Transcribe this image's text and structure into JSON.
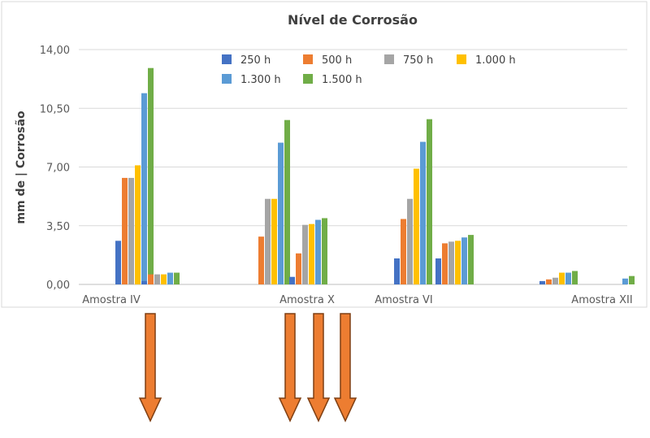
{
  "chart_data": {
    "type": "bar",
    "title": "Nível de Corrosão",
    "ylabel": "mm de | Corrosão",
    "xlabel": "",
    "ylim": [
      0,
      14
    ],
    "yticks": [
      "0,00",
      "3,50",
      "7,00",
      "10,50",
      "14,00"
    ],
    "ytick_values": [
      0,
      3.5,
      7,
      10.5,
      14
    ],
    "grid": true,
    "legend_position": "top",
    "category_labels": [
      "Amostra IV",
      "Amostra X",
      "Amostra VI",
      "Amostra XII"
    ],
    "groups": [
      {
        "values": [
          2.6,
          6.35,
          6.35,
          7.1,
          11.4,
          12.9
        ]
      },
      {
        "values": [
          0.2,
          0.6,
          0.6,
          0.6,
          0.7,
          0.7
        ]
      },
      {
        "values": [
          null,
          2.85,
          5.1,
          5.1,
          8.45,
          9.8
        ]
      },
      {
        "values": [
          0.45,
          1.85,
          3.55,
          3.6,
          3.85,
          3.95
        ]
      },
      {
        "values": [
          1.55,
          3.9,
          5.1,
          6.9,
          8.5,
          9.85
        ]
      },
      {
        "values": [
          1.55,
          2.45,
          2.55,
          2.6,
          2.8,
          2.95
        ]
      },
      {
        "values": [
          0.2,
          0.3,
          0.4,
          0.7,
          0.7,
          0.8
        ]
      },
      {
        "values": [
          null,
          null,
          null,
          null,
          0.35,
          0.5
        ]
      }
    ],
    "series": [
      {
        "name": "250 h",
        "color": "#4472C4"
      },
      {
        "name": "500 h",
        "color": "#ED7D31"
      },
      {
        "name": "750 h",
        "color": "#A5A5A5"
      },
      {
        "name": "1.000 h",
        "color": "#FFC000"
      },
      {
        "name": "1.300 h",
        "color": "#5B9BD5"
      },
      {
        "name": "1.500 h",
        "color": "#70AD47"
      }
    ]
  },
  "arrows": {
    "color": "#ED7D31",
    "outline": "#7F3F12",
    "count": 4
  }
}
